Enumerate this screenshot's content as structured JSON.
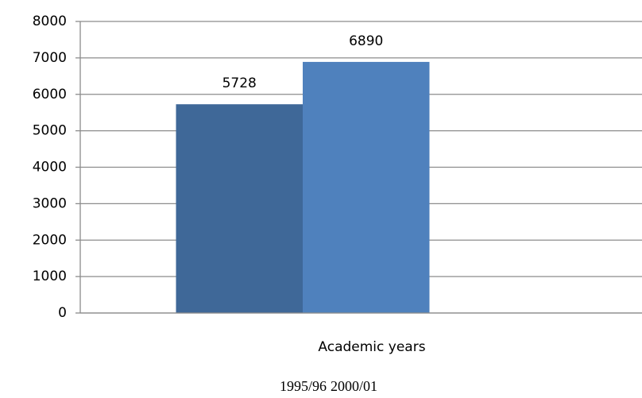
{
  "chart_data": {
    "type": "bar",
    "categories": [
      "Academic years"
    ],
    "series": [
      {
        "name": "1995/96",
        "color": "#3f6898",
        "values": [
          5728
        ]
      },
      {
        "name": "2000/01",
        "color": "#4f81bd",
        "values": [
          6890
        ]
      }
    ],
    "ylim": [
      0,
      8000
    ],
    "yticks": [
      0,
      1000,
      2000,
      3000,
      4000,
      5000,
      6000,
      7000,
      8000
    ],
    "grid": true,
    "data_labels": true,
    "legend": "bottom"
  }
}
